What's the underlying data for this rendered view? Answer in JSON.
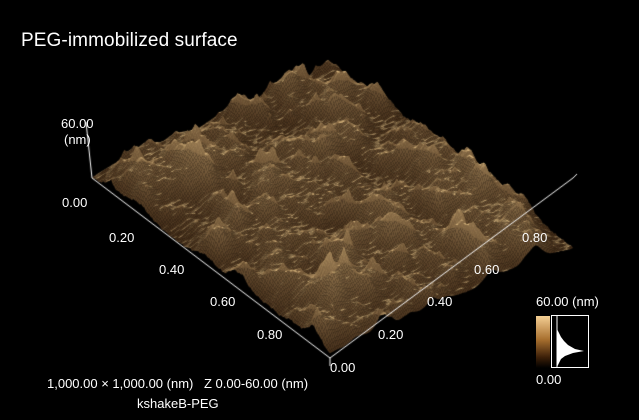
{
  "title": "PEG-immobilized surface",
  "z_axis": {
    "max_label": "60.00",
    "unit_label": "(nm)",
    "min_label": "0.00"
  },
  "left_axis_ticks": [
    "0.20",
    "0.40",
    "0.60",
    "0.80"
  ],
  "bottom_origin_label": "0.00",
  "right_axis_ticks": [
    "0.20",
    "0.40",
    "0.60",
    "0.80"
  ],
  "scale_bar": {
    "max_label": "60.00 (nm)",
    "min_label": "0.00"
  },
  "footer": {
    "scan_size": "1,000.00 × 1,000.00 (nm)",
    "z_range": "Z 0.00-60.00 (nm)",
    "sample_name": "kshakeB-PEG"
  },
  "colors": {
    "background": "#000000",
    "surface_dark": "#3a1e08",
    "surface_mid": "#a8702f",
    "surface_light": "#f4cf94",
    "text": "#ffffff"
  }
}
